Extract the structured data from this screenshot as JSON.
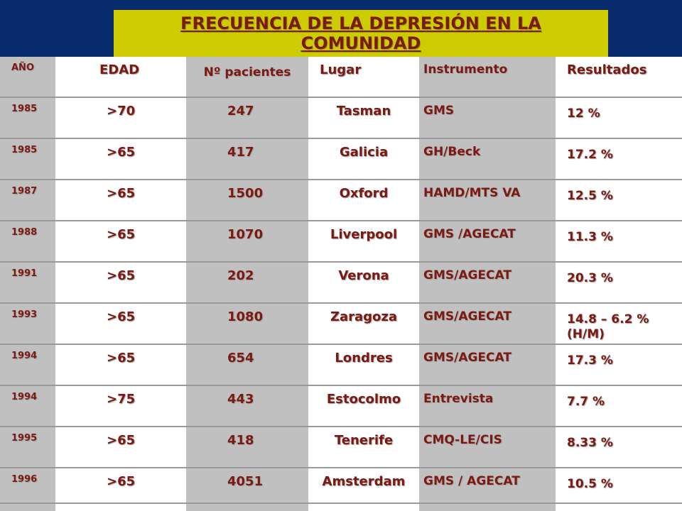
{
  "title": "FRECUENCIA DE LA DEPRESIÓN EN LA COMUNIDAD",
  "headers": [
    "AÑO",
    "EDAD",
    "Nº pacientes",
    "Lugar",
    "Instrumento",
    "Resultados"
  ],
  "rows": [
    [
      "1985",
      ">70",
      "247",
      "Tasman",
      "GMS",
      "12 %"
    ],
    [
      "1985",
      ">65",
      "417",
      "Galicia",
      "GH/Beck",
      "17.2 %"
    ],
    [
      "1987",
      ">65",
      "1500",
      "Oxford",
      "HAMD/MTS VA",
      "12.5 %"
    ],
    [
      "1988",
      ">65",
      "1070",
      "Liverpool",
      "GMS /AGECAT",
      "11.3 %"
    ],
    [
      "1991",
      ">65",
      "202",
      "Verona",
      "GMS/AGECAT",
      "20.3 %"
    ],
    [
      "1993",
      ">65",
      "1080",
      "Zaragoza",
      "GMS/AGECAT",
      "14.8 – 6.2 % (H/M)"
    ],
    [
      "1994",
      ">65",
      "654",
      "Londres",
      "GMS/AGECAT",
      "17.3 %"
    ],
    [
      "1994",
      ">75",
      "443",
      "Estocolmo",
      "Entrevista",
      "7.7 %"
    ],
    [
      "1995",
      ">65",
      "418",
      "Tenerife",
      "CMQ-LE/CIS",
      "8.33 %"
    ],
    [
      "1996",
      ">65",
      "4051",
      "Amsterdam",
      "GMS / AGECAT",
      "10.5 %"
    ]
  ],
  "colors": {
    "background": "#0a2a6e",
    "title_box": "#cccc00",
    "text": "#7a1a12",
    "grey_column": "#c0c0c0",
    "white_column": "#ffffff"
  }
}
